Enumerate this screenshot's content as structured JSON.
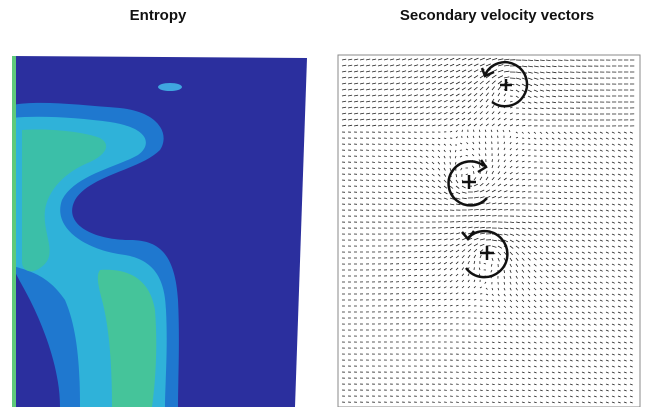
{
  "panels": [
    {
      "title": "Entropy"
    },
    {
      "title": "Secondary velocity vectors"
    }
  ]
}
